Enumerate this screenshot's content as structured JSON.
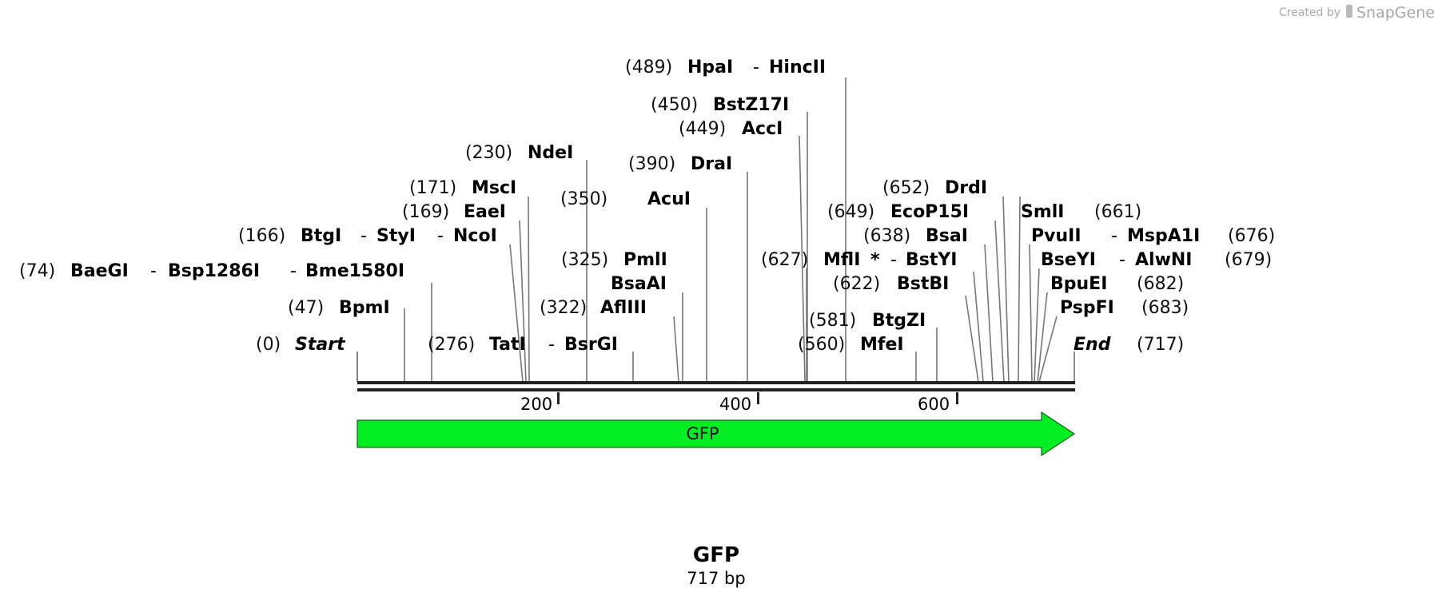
{
  "watermark": {
    "created_by": "Created by",
    "brand": "SnapGene"
  },
  "sequence": {
    "name": "GFP",
    "length_label": "717 bp",
    "length": 717,
    "ticks": [
      "200",
      "400",
      "600"
    ],
    "tick_positions": [
      200,
      400,
      600
    ],
    "feature": {
      "label": "GFP",
      "start": 0,
      "end": 717,
      "direction": "forward",
      "color": "#00ee22"
    }
  },
  "sites": [
    {
      "pos": "(0)",
      "names": [
        "Start"
      ],
      "italic": true
    },
    {
      "pos": "(47)",
      "names": [
        "BpmI"
      ]
    },
    {
      "pos": "(74)",
      "names": [
        "BaeGI",
        "Bsp1286I",
        "Bme1580I"
      ]
    },
    {
      "pos": "(166)",
      "names": [
        "BtgI",
        "StyI",
        "NcoI"
      ]
    },
    {
      "pos": "(169)",
      "names": [
        "EaeI"
      ]
    },
    {
      "pos": "(171)",
      "names": [
        "MscI"
      ]
    },
    {
      "pos": "(230)",
      "names": [
        "NdeI"
      ]
    },
    {
      "pos": "(276)",
      "names": [
        "TatI",
        "BsrGI"
      ]
    },
    {
      "pos": "(322)",
      "names": [
        "AflIII"
      ]
    },
    {
      "pos": "(325)",
      "names": [
        "PmlI"
      ]
    },
    {
      "pos": "",
      "names": [
        "BsaAI"
      ]
    },
    {
      "pos": "(350)",
      "names": [
        "AcuI"
      ]
    },
    {
      "pos": "(390)",
      "names": [
        "DraI"
      ]
    },
    {
      "pos": "(449)",
      "names": [
        "AccI"
      ]
    },
    {
      "pos": "(450)",
      "names": [
        "BstZ17I"
      ]
    },
    {
      "pos": "(489)",
      "names": [
        "HpaI",
        "HincII"
      ]
    },
    {
      "pos": "(560)",
      "names": [
        "MfeI"
      ]
    },
    {
      "pos": "(581)",
      "names": [
        "BtgZI"
      ]
    },
    {
      "pos": "(622)",
      "names": [
        "BstBI"
      ]
    },
    {
      "pos": "(627)",
      "names": [
        "MflI",
        "BstYI"
      ],
      "star": "*"
    },
    {
      "pos": "(638)",
      "names": [
        "BsaI"
      ]
    },
    {
      "pos": "(649)",
      "names": [
        "EcoP15I"
      ]
    },
    {
      "pos": "(652)",
      "names": [
        "DrdI"
      ]
    },
    {
      "pos": "(661)",
      "names": [
        "SmlI"
      ]
    },
    {
      "pos": "(676)",
      "names": [
        "PvuII",
        "MspA1I"
      ]
    },
    {
      "pos": "(679)",
      "names": [
        "BseYI",
        "AlwNI"
      ]
    },
    {
      "pos": "(682)",
      "names": [
        "BpuEI"
      ]
    },
    {
      "pos": "(683)",
      "names": [
        "PspFI"
      ]
    },
    {
      "pos": "(717)",
      "names": [
        "End"
      ],
      "italic": true
    }
  ],
  "colors": {
    "backbone": "#222222",
    "leader": "#777777",
    "feature_fill": "#00ee22",
    "feature_stroke": "#1a5a1a"
  }
}
